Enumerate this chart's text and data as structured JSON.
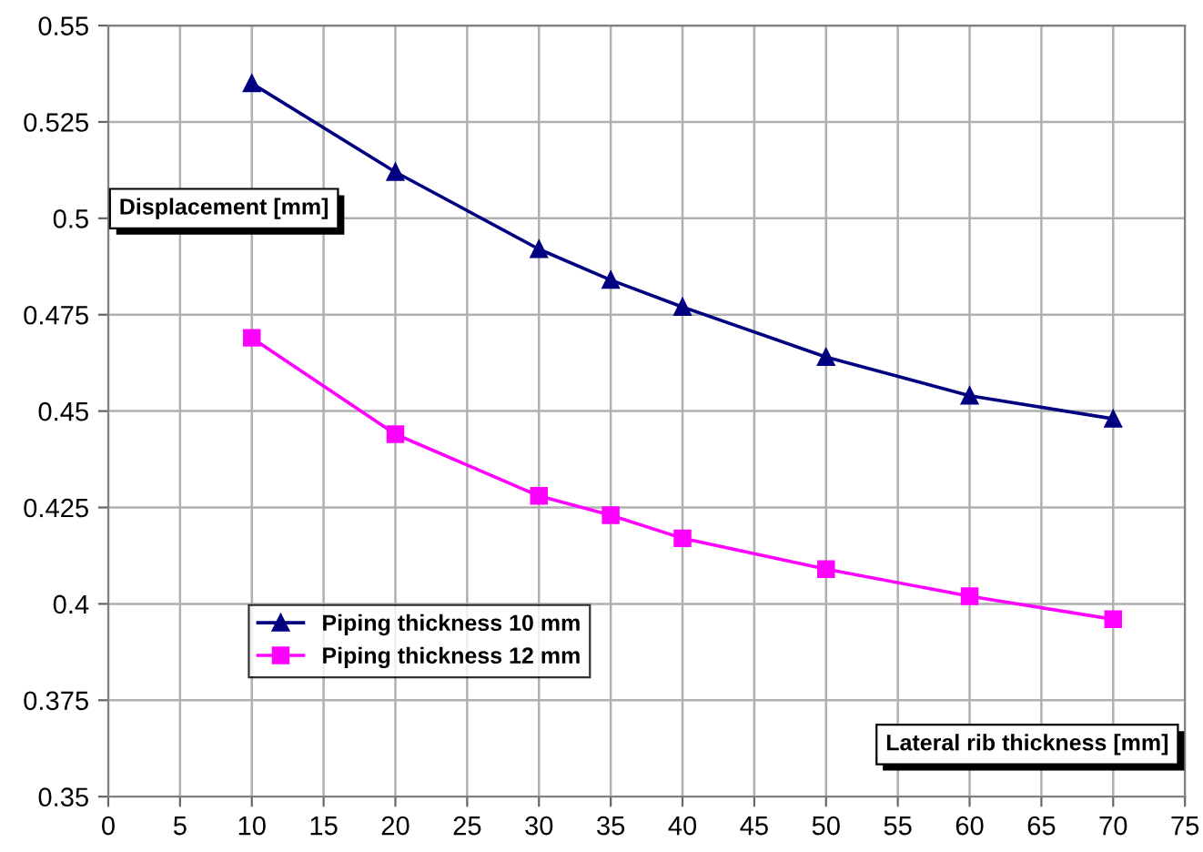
{
  "chart_data": {
    "type": "line",
    "xlabel": "Lateral rib thickness [mm]",
    "ylabel": "Displacement [mm]",
    "x": [
      10,
      20,
      30,
      35,
      40,
      50,
      60,
      70
    ],
    "series": [
      {
        "name": "Piping thickness 10 mm",
        "color": "#000080",
        "marker": "triangle",
        "values": [
          0.535,
          0.512,
          0.492,
          0.484,
          0.477,
          0.464,
          0.454,
          0.448
        ]
      },
      {
        "name": "Piping thickness 12 mm",
        "color": "#ff00ff",
        "marker": "square",
        "values": [
          0.469,
          0.444,
          0.428,
          0.423,
          0.417,
          0.409,
          0.402,
          0.396
        ]
      }
    ],
    "xlim": [
      0,
      75
    ],
    "xticks": [
      0,
      5,
      10,
      15,
      20,
      25,
      30,
      35,
      40,
      45,
      50,
      55,
      60,
      65,
      70,
      75
    ],
    "ylim": [
      0.35,
      0.55
    ],
    "yticks": [
      0.35,
      0.375,
      0.4,
      0.425,
      0.45,
      0.475,
      0.5,
      0.525,
      0.55
    ],
    "grid": true,
    "legend": "bottom left",
    "line_style": "solid"
  }
}
